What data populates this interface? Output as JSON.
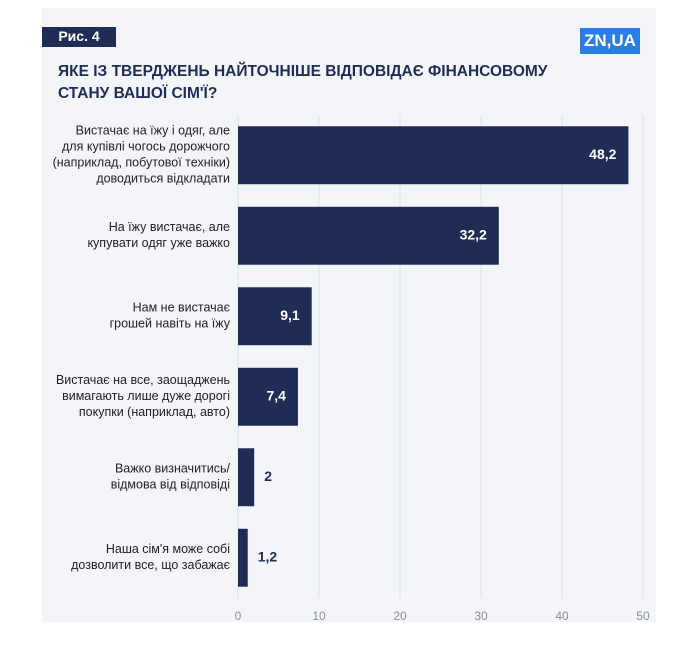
{
  "figure_label": "Рис. 4",
  "logo": "ZN,UA",
  "chart_data": {
    "type": "bar",
    "orientation": "horizontal",
    "title": "ЯКЕ ІЗ ТВЕРДЖЕНЬ НАЙТОЧНІШЕ ВІДПОВІДАЄ ФІНАНСОВОМУ\nСТАНУ ВАШОЇ СІМ'Ї?",
    "categories": [
      "Вистачає на їжу і одяг, але\nдля купівлі чогось дорожчого\n(наприклад, побутової техніки)\nдоводиться відкладати",
      "На їжу вистачає, але\nкупувати одяг уже важко",
      "Нам не вистачає\nгрошей навіть на їжу",
      "Вистачає на все, заощаджень\nвимагають лише дуже дорогі\nпокупки (наприклад, авто)",
      "Важко визначитись/\nвідмова від відповіді",
      "Наша сім'я може собі\nдозволити все, що забажає"
    ],
    "values": [
      48.2,
      32.2,
      9.1,
      7.4,
      2,
      1.2
    ],
    "value_labels": [
      "48,2",
      "32,2",
      "9,1",
      "7,4",
      "2",
      "1,2"
    ],
    "color": "#1f2d55",
    "xlim": [
      0,
      50
    ],
    "xticks": [
      0,
      10,
      20,
      30,
      40,
      50
    ],
    "grid": true
  }
}
